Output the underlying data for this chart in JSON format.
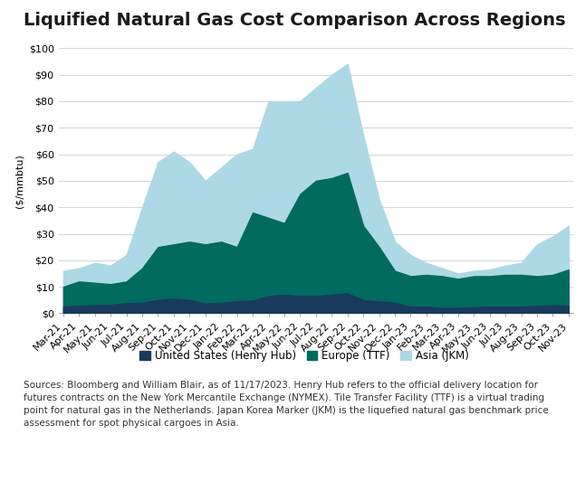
{
  "title": "Liquified Natural Gas Cost Comparison Across Regions",
  "ylabel": "($/mmbtu)",
  "ylim": [
    0,
    100
  ],
  "yticks": [
    0,
    10,
    20,
    30,
    40,
    50,
    60,
    70,
    80,
    90,
    100
  ],
  "ytick_labels": [
    "$0",
    "$10",
    "$20",
    "$30",
    "$40",
    "$50",
    "$60",
    "$70",
    "$80",
    "$90",
    "$100"
  ],
  "background_color": "#ffffff",
  "labels": [
    "Mar-21",
    "Apr-21",
    "May-21",
    "Jun-21",
    "Jul-21",
    "Aug-21",
    "Sep-21",
    "Oct-21",
    "Nov-21",
    "Dec-21",
    "Jan-22",
    "Feb-22",
    "Mar-22",
    "Apr-22",
    "May-22",
    "Jun-22",
    "Jul-22",
    "Aug-22",
    "Sep-22",
    "Oct-22",
    "Nov-22",
    "Dec-22",
    "Jan-23",
    "Feb-23",
    "Mar-23",
    "Apr-23",
    "May-23",
    "Jun-23",
    "Jul-23",
    "Aug-23",
    "Sep-23",
    "Oct-23",
    "Nov-23"
  ],
  "us_henry_hub": [
    2.5,
    2.8,
    3.0,
    3.2,
    3.8,
    4.0,
    5.0,
    5.5,
    5.0,
    3.7,
    4.0,
    4.5,
    4.8,
    6.5,
    7.0,
    6.5,
    6.5,
    7.0,
    7.5,
    5.0,
    4.5,
    4.0,
    2.5,
    2.5,
    2.0,
    2.0,
    2.2,
    2.5,
    2.5,
    2.5,
    2.8,
    3.0,
    2.8
  ],
  "europe_ttf": [
    10.0,
    12.0,
    11.5,
    11.0,
    12.0,
    17.0,
    25.0,
    26.0,
    27.0,
    26.0,
    27.0,
    25.0,
    38.0,
    36.0,
    34.0,
    45.0,
    50.0,
    51.0,
    53.0,
    33.0,
    25.0,
    16.0,
    14.0,
    14.5,
    14.0,
    13.0,
    14.0,
    14.0,
    14.5,
    14.5,
    14.0,
    14.5,
    16.5
  ],
  "asia_jkm": [
    16.0,
    17.0,
    19.0,
    18.0,
    22.0,
    40.0,
    57.0,
    61.0,
    57.0,
    50.0,
    55.0,
    60.0,
    62.0,
    80.0,
    80.0,
    80.0,
    85.0,
    90.0,
    94.0,
    67.0,
    43.0,
    27.0,
    22.0,
    19.0,
    17.0,
    15.0,
    16.0,
    16.5,
    18.0,
    19.0,
    26.0,
    29.0,
    33.0
  ],
  "color_us": "#1a3a5c",
  "color_europe": "#006b5e",
  "color_asia": "#add8e6",
  "legend_labels": [
    "United States (Henry Hub)",
    "Europe (TTF)",
    "Asia (JKM)"
  ],
  "source_text": "Sources: Bloomberg and William Blair, as of 11/17/2023. Henry Hub refers to the official delivery location for\nfutures contracts on the New York Mercantile Exchange (NYMEX). Tile Transfer Facility (TTF) is a virtual trading\npoint for natural gas in the Netherlands. Japan Korea Marker (JKM) is the liquefied natural gas benchmark price\nassessment for spot physical cargoes in Asia.",
  "title_fontsize": 14,
  "tick_fontsize": 8.0,
  "legend_fontsize": 8.5,
  "source_fontsize": 7.5
}
